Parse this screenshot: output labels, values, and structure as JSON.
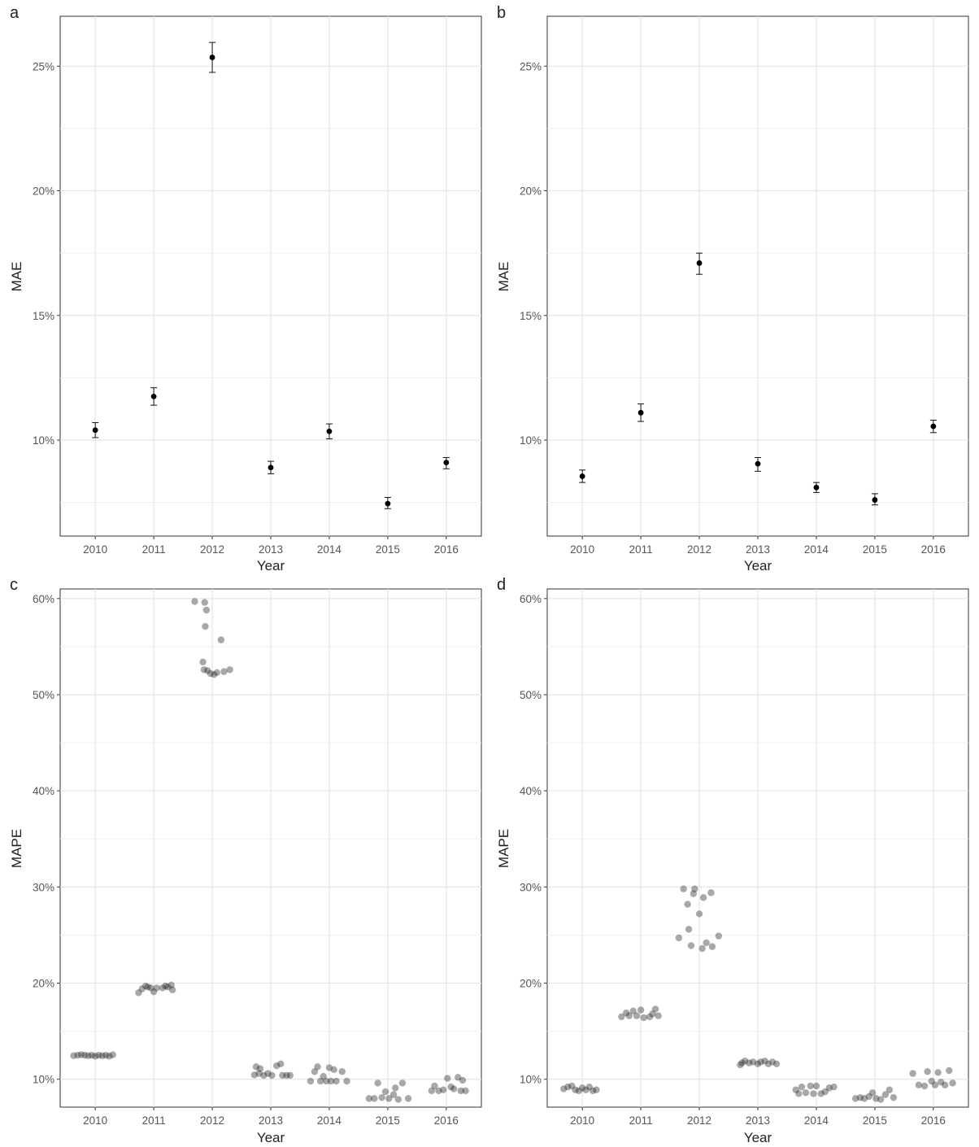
{
  "chart_data": [
    {
      "panel_label": "a",
      "type": "scatter",
      "xlabel": "Year",
      "ylabel": "MAE",
      "x": [
        "2010",
        "2011",
        "2012",
        "2013",
        "2014",
        "2015",
        "2016"
      ],
      "y": [
        10.4,
        11.75,
        25.35,
        8.9,
        10.35,
        7.45,
        9.1
      ],
      "error_low": [
        10.1,
        11.4,
        24.75,
        8.65,
        10.05,
        7.25,
        8.85
      ],
      "error_high": [
        10.7,
        12.1,
        25.95,
        9.15,
        10.65,
        7.7,
        9.3
      ],
      "yticks": [
        "10%",
        "15%",
        "20%",
        "25%"
      ],
      "ylim": [
        6.15,
        27.0
      ],
      "grid": true
    },
    {
      "panel_label": "b",
      "type": "scatter",
      "xlabel": "Year",
      "ylabel": "MAE",
      "x": [
        "2010",
        "2011",
        "2012",
        "2013",
        "2014",
        "2015",
        "2016"
      ],
      "y": [
        8.55,
        11.1,
        17.1,
        9.05,
        8.1,
        7.6,
        10.55
      ],
      "error_low": [
        8.3,
        10.75,
        16.65,
        8.75,
        7.9,
        7.4,
        10.3
      ],
      "error_high": [
        8.8,
        11.45,
        17.5,
        9.3,
        8.3,
        7.85,
        10.8
      ],
      "yticks": [
        "10%",
        "15%",
        "20%",
        "25%"
      ],
      "ylim": [
        6.15,
        27.0
      ],
      "grid": true
    },
    {
      "panel_label": "c",
      "type": "scatter",
      "xlabel": "Year",
      "ylabel": "MAPE",
      "x": [
        "2010",
        "2011",
        "2012",
        "2013",
        "2014",
        "2015",
        "2016"
      ],
      "points": {
        "2010": [
          [
            -0.37,
            12.45
          ],
          [
            -0.3,
            12.5
          ],
          [
            -0.24,
            12.55
          ],
          [
            -0.18,
            12.5
          ],
          [
            -0.12,
            12.45
          ],
          [
            -0.06,
            12.5
          ],
          [
            0.0,
            12.4
          ],
          [
            0.06,
            12.5
          ],
          [
            0.12,
            12.45
          ],
          [
            0.18,
            12.5
          ],
          [
            0.24,
            12.4
          ],
          [
            0.3,
            12.55
          ]
        ],
        "2011": [
          [
            -0.26,
            19.0
          ],
          [
            -0.2,
            19.4
          ],
          [
            -0.14,
            19.7
          ],
          [
            -0.1,
            19.6
          ],
          [
            -0.05,
            19.5
          ],
          [
            0.0,
            19.1
          ],
          [
            0.05,
            19.5
          ],
          [
            0.15,
            19.5
          ],
          [
            0.2,
            19.7
          ],
          [
            0.24,
            19.6
          ],
          [
            0.3,
            19.8
          ],
          [
            0.32,
            19.3
          ]
        ],
        "2012": [
          [
            -0.3,
            59.7
          ],
          [
            -0.13,
            59.6
          ],
          [
            -0.1,
            58.8
          ],
          [
            -0.12,
            57.1
          ],
          [
            0.15,
            55.7
          ],
          [
            -0.16,
            53.4
          ],
          [
            -0.14,
            52.6
          ],
          [
            -0.08,
            52.5
          ],
          [
            -0.03,
            52.2
          ],
          [
            0.03,
            52.1
          ],
          [
            0.08,
            52.3
          ],
          [
            0.2,
            52.4
          ],
          [
            0.3,
            52.6
          ]
        ],
        "2013": [
          [
            -0.28,
            10.45
          ],
          [
            -0.25,
            11.3
          ],
          [
            -0.18,
            11.1
          ],
          [
            -0.2,
            10.6
          ],
          [
            -0.12,
            10.4
          ],
          [
            -0.05,
            10.6
          ],
          [
            0.02,
            10.4
          ],
          [
            0.1,
            11.4
          ],
          [
            0.17,
            11.6
          ],
          [
            0.2,
            10.4
          ],
          [
            0.27,
            10.4
          ],
          [
            0.33,
            10.4
          ]
        ],
        "2014": [
          [
            -0.32,
            9.8
          ],
          [
            -0.25,
            10.8
          ],
          [
            -0.2,
            11.3
          ],
          [
            -0.15,
            9.8
          ],
          [
            -0.1,
            10.3
          ],
          [
            -0.05,
            9.8
          ],
          [
            0.0,
            11.2
          ],
          [
            0.03,
            9.8
          ],
          [
            0.08,
            11.0
          ],
          [
            0.12,
            9.8
          ],
          [
            0.22,
            10.8
          ],
          [
            0.3,
            9.8
          ]
        ],
        "2015": [
          [
            -0.32,
            8.0
          ],
          [
            -0.23,
            8.0
          ],
          [
            -0.17,
            9.6
          ],
          [
            -0.1,
            8.1
          ],
          [
            -0.04,
            8.7
          ],
          [
            0.02,
            8.0
          ],
          [
            0.1,
            8.4
          ],
          [
            0.13,
            9.1
          ],
          [
            0.18,
            7.9
          ],
          [
            0.25,
            9.6
          ],
          [
            0.35,
            8.0
          ]
        ],
        "2016": [
          [
            -0.25,
            8.8
          ],
          [
            -0.2,
            9.3
          ],
          [
            -0.13,
            8.8
          ],
          [
            -0.05,
            8.9
          ],
          [
            0.02,
            10.1
          ],
          [
            0.08,
            9.2
          ],
          [
            0.13,
            9.0
          ],
          [
            0.2,
            10.2
          ],
          [
            0.25,
            8.8
          ],
          [
            0.28,
            9.9
          ],
          [
            0.33,
            8.8
          ]
        ]
      },
      "yticks": [
        "10%",
        "20%",
        "30%",
        "40%",
        "50%",
        "60%"
      ],
      "ylim": [
        7.1,
        61.0
      ],
      "grid": true
    },
    {
      "panel_label": "d",
      "type": "scatter",
      "xlabel": "Year",
      "ylabel": "MAPE",
      "x": [
        "2010",
        "2011",
        "2012",
        "2013",
        "2014",
        "2015",
        "2016"
      ],
      "points": {
        "2010": [
          [
            -0.32,
            9.0
          ],
          [
            -0.25,
            9.2
          ],
          [
            -0.18,
            9.3
          ],
          [
            -0.12,
            8.9
          ],
          [
            -0.06,
            8.8
          ],
          [
            0.0,
            9.1
          ],
          [
            0.06,
            8.9
          ],
          [
            0.12,
            9.2
          ],
          [
            0.18,
            8.8
          ],
          [
            0.24,
            8.9
          ]
        ],
        "2011": [
          [
            -0.33,
            16.5
          ],
          [
            -0.25,
            16.9
          ],
          [
            -0.2,
            16.6
          ],
          [
            -0.13,
            17.1
          ],
          [
            -0.07,
            16.6
          ],
          [
            0.0,
            17.2
          ],
          [
            0.05,
            16.4
          ],
          [
            0.15,
            16.5
          ],
          [
            0.2,
            16.8
          ],
          [
            0.25,
            17.3
          ],
          [
            0.3,
            16.6
          ]
        ],
        "2012": [
          [
            -0.35,
            24.7
          ],
          [
            -0.27,
            29.8
          ],
          [
            -0.2,
            28.2
          ],
          [
            -0.18,
            25.6
          ],
          [
            -0.14,
            23.9
          ],
          [
            -0.1,
            29.3
          ],
          [
            -0.08,
            29.8
          ],
          [
            0.0,
            27.2
          ],
          [
            0.05,
            23.6
          ],
          [
            0.07,
            28.9
          ],
          [
            0.12,
            24.2
          ],
          [
            0.2,
            29.4
          ],
          [
            0.22,
            23.8
          ],
          [
            0.33,
            24.9
          ]
        ],
        "2013": [
          [
            -0.3,
            11.5
          ],
          [
            -0.27,
            11.7
          ],
          [
            -0.22,
            11.9
          ],
          [
            -0.15,
            11.7
          ],
          [
            -0.08,
            11.8
          ],
          [
            0.0,
            11.6
          ],
          [
            0.05,
            11.8
          ],
          [
            0.12,
            11.9
          ],
          [
            0.18,
            11.6
          ],
          [
            0.25,
            11.8
          ],
          [
            0.32,
            11.6
          ]
        ],
        "2014": [
          [
            -0.35,
            8.9
          ],
          [
            -0.3,
            8.5
          ],
          [
            -0.25,
            9.2
          ],
          [
            -0.18,
            8.6
          ],
          [
            -0.1,
            9.3
          ],
          [
            -0.05,
            8.5
          ],
          [
            0.0,
            9.3
          ],
          [
            0.08,
            8.5
          ],
          [
            0.15,
            8.7
          ],
          [
            0.22,
            9.1
          ],
          [
            0.3,
            9.2
          ]
        ],
        "2015": [
          [
            -0.33,
            8.0
          ],
          [
            -0.25,
            8.1
          ],
          [
            -0.18,
            8.0
          ],
          [
            -0.1,
            8.2
          ],
          [
            -0.04,
            8.6
          ],
          [
            0.02,
            8.0
          ],
          [
            0.1,
            7.9
          ],
          [
            0.18,
            8.4
          ],
          [
            0.25,
            8.9
          ],
          [
            0.32,
            8.1
          ]
        ],
        "2016": [
          [
            -0.35,
            10.6
          ],
          [
            -0.25,
            9.4
          ],
          [
            -0.15,
            9.3
          ],
          [
            -0.1,
            10.8
          ],
          [
            -0.03,
            9.8
          ],
          [
            0.03,
            9.4
          ],
          [
            0.08,
            10.7
          ],
          [
            0.13,
            9.7
          ],
          [
            0.2,
            9.4
          ],
          [
            0.27,
            10.9
          ],
          [
            0.33,
            9.6
          ]
        ]
      },
      "yticks": [
        "10%",
        "20%",
        "30%",
        "40%",
        "50%",
        "60%"
      ],
      "ylim": [
        7.1,
        61.0
      ],
      "grid": true
    }
  ]
}
